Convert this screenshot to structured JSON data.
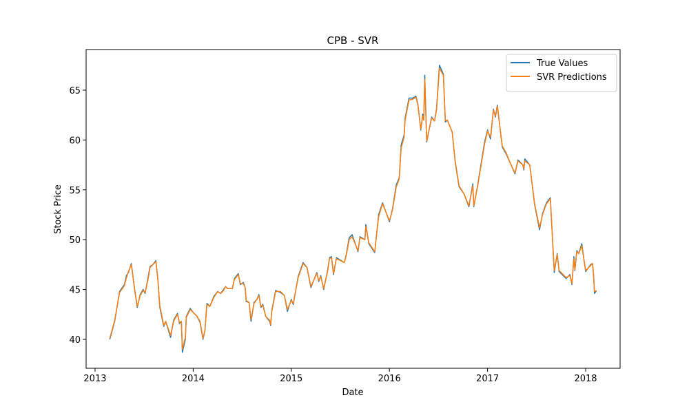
{
  "chart_data": {
    "type": "line",
    "title": "CPB - SVR",
    "xlabel": "Date",
    "ylabel": "Stock Price",
    "x": [
      2013.15,
      2013.2,
      2013.25,
      2013.3,
      2013.32,
      2013.34,
      2013.37,
      2013.4,
      2013.43,
      2013.46,
      2013.49,
      2013.51,
      2013.54,
      2013.56,
      2013.59,
      2013.62,
      2013.64,
      2013.66,
      2013.7,
      2013.72,
      2013.77,
      2013.8,
      2013.84,
      2013.86,
      2013.88,
      2013.89,
      2013.92,
      2013.93,
      2013.97,
      2014.0,
      2014.04,
      2014.07,
      2014.1,
      2014.12,
      2014.14,
      2014.17,
      2014.21,
      2014.25,
      2014.28,
      2014.31,
      2014.33,
      2014.35,
      2014.4,
      2014.42,
      2014.46,
      2014.48,
      2014.51,
      2014.53,
      2014.54,
      2014.57,
      2014.59,
      2014.62,
      2014.65,
      2014.67,
      2014.69,
      2014.71,
      2014.74,
      2014.78,
      2014.79,
      2014.8,
      2014.84,
      2014.89,
      2014.93,
      2014.96,
      2015.0,
      2015.02,
      2015.07,
      2015.12,
      2015.16,
      2015.2,
      2015.26,
      2015.28,
      2015.3,
      2015.33,
      2015.37,
      2015.39,
      2015.41,
      2015.43,
      2015.46,
      2015.54,
      2015.56,
      2015.59,
      2015.62,
      2015.68,
      2015.7,
      2015.75,
      2015.76,
      2015.79,
      2015.85,
      2015.89,
      2015.93,
      2016.0,
      2016.03,
      2016.07,
      2016.1,
      2016.12,
      2016.15,
      2016.16,
      2016.2,
      2016.24,
      2016.27,
      2016.29,
      2016.32,
      2016.34,
      2016.35,
      2016.36,
      2016.38,
      2016.43,
      2016.46,
      2016.48,
      2016.51,
      2016.55,
      2016.57,
      2016.59,
      2016.64,
      2016.67,
      2016.71,
      2016.76,
      2016.81,
      2016.85,
      2016.86,
      2016.9,
      2016.97,
      2017.0,
      2017.03,
      2017.06,
      2017.08,
      2017.1,
      2017.15,
      2017.19,
      2017.24,
      2017.28,
      2017.31,
      2017.36,
      2017.37,
      2017.38,
      2017.43,
      2017.48,
      2017.53,
      2017.56,
      2017.6,
      2017.64,
      2017.68,
      2017.71,
      2017.73,
      2017.8,
      2017.84,
      2017.86,
      2017.88,
      2017.89,
      2017.91,
      2017.93,
      2017.96,
      2018.0,
      2018.05,
      2018.07,
      2018.08,
      2018.09,
      2018.11
    ],
    "series": [
      {
        "name": "True Values",
        "color": "#1f77b4",
        "values": [
          40.0,
          41.8,
          44.8,
          45.5,
          46.4,
          46.7,
          47.6,
          45.2,
          43.2,
          44.5,
          45.0,
          44.6,
          46.2,
          47.3,
          47.5,
          47.9,
          46.0,
          43.2,
          41.3,
          41.8,
          40.2,
          41.9,
          42.6,
          41.6,
          41.8,
          38.7,
          40.0,
          42.3,
          43.1,
          42.7,
          42.3,
          41.7,
          40.0,
          40.9,
          43.6,
          43.3,
          44.3,
          44.8,
          44.6,
          45.0,
          45.3,
          45.1,
          45.1,
          46.1,
          46.6,
          45.5,
          45.7,
          45.2,
          43.8,
          43.7,
          41.8,
          43.7,
          44.0,
          44.5,
          43.2,
          43.5,
          42.3,
          41.8,
          41.4,
          42.8,
          44.9,
          44.7,
          44.4,
          42.8,
          44.0,
          43.5,
          46.3,
          47.7,
          47.2,
          45.2,
          46.7,
          45.8,
          46.4,
          45.0,
          46.9,
          48.2,
          48.3,
          46.5,
          48.2,
          47.7,
          48.5,
          50.2,
          50.5,
          48.8,
          50.3,
          50.0,
          51.5,
          49.6,
          48.7,
          52.5,
          53.7,
          51.8,
          53.0,
          55.5,
          56.2,
          59.5,
          60.5,
          62.2,
          64.2,
          64.2,
          64.4,
          63.6,
          61.0,
          62.6,
          62.0,
          66.5,
          59.8,
          62.3,
          61.9,
          63.1,
          67.5,
          66.6,
          61.8,
          62.0,
          60.8,
          57.8,
          55.3,
          54.6,
          53.3,
          55.6,
          53.3,
          55.5,
          59.8,
          61.0,
          60.1,
          63.1,
          62.3,
          63.5,
          59.3,
          58.6,
          57.5,
          56.6,
          58.0,
          57.5,
          57.0,
          58.1,
          57.5,
          53.5,
          51.0,
          52.6,
          53.7,
          54.2,
          46.7,
          48.6,
          46.8,
          46.1,
          46.5,
          45.5,
          48.3,
          46.9,
          48.9,
          48.6,
          49.6,
          46.8,
          47.5,
          47.6,
          46.5,
          44.6,
          44.9
        ]
      },
      {
        "name": "SVR Predictions",
        "color": "#ff7f0e",
        "values": [
          40.1,
          41.9,
          44.7,
          45.4,
          46.2,
          46.8,
          47.5,
          45.3,
          43.3,
          44.4,
          44.9,
          44.7,
          46.0,
          47.2,
          47.5,
          47.8,
          46.1,
          43.4,
          41.4,
          41.8,
          40.4,
          41.8,
          42.5,
          41.7,
          41.8,
          39.0,
          40.2,
          42.2,
          43.0,
          42.7,
          42.3,
          41.8,
          40.1,
          40.9,
          43.5,
          43.3,
          44.2,
          44.8,
          44.6,
          44.9,
          45.3,
          45.1,
          45.1,
          46.0,
          46.5,
          45.6,
          45.6,
          45.2,
          43.9,
          43.7,
          42.0,
          43.6,
          44.0,
          44.4,
          43.3,
          43.4,
          42.3,
          41.9,
          41.5,
          42.7,
          44.8,
          44.8,
          44.4,
          43.0,
          43.9,
          43.6,
          46.2,
          47.6,
          47.2,
          45.3,
          46.6,
          45.9,
          46.3,
          45.1,
          46.8,
          48.1,
          48.2,
          46.6,
          48.1,
          47.7,
          48.4,
          50.0,
          50.3,
          48.9,
          50.2,
          50.0,
          51.3,
          49.7,
          48.8,
          52.3,
          53.6,
          51.9,
          52.9,
          55.3,
          56.1,
          59.2,
          60.3,
          62.0,
          64.0,
          64.1,
          64.3,
          63.5,
          61.1,
          62.4,
          62.0,
          66.1,
          59.9,
          62.2,
          61.9,
          63.0,
          67.2,
          66.5,
          61.9,
          62.0,
          60.8,
          57.9,
          55.4,
          54.6,
          53.4,
          55.4,
          53.4,
          55.4,
          59.6,
          60.9,
          60.3,
          63.0,
          62.4,
          63.4,
          59.4,
          58.7,
          57.5,
          56.7,
          57.9,
          57.5,
          57.1,
          57.9,
          57.5,
          53.6,
          51.2,
          52.5,
          53.6,
          54.1,
          46.9,
          48.5,
          46.9,
          46.2,
          46.4,
          45.6,
          48.1,
          47.0,
          48.8,
          48.6,
          49.4,
          46.9,
          47.4,
          47.6,
          46.6,
          44.8,
          44.9
        ]
      }
    ],
    "xlim": [
      2012.909,
      2018.351
    ],
    "xticks": [
      2013,
      2014,
      2015,
      2016,
      2017,
      2018
    ],
    "ylim": [
      37.1,
      69.07
    ],
    "yticks": [
      40,
      45,
      50,
      55,
      60,
      65
    ],
    "grid": false,
    "legend": "upper right"
  }
}
